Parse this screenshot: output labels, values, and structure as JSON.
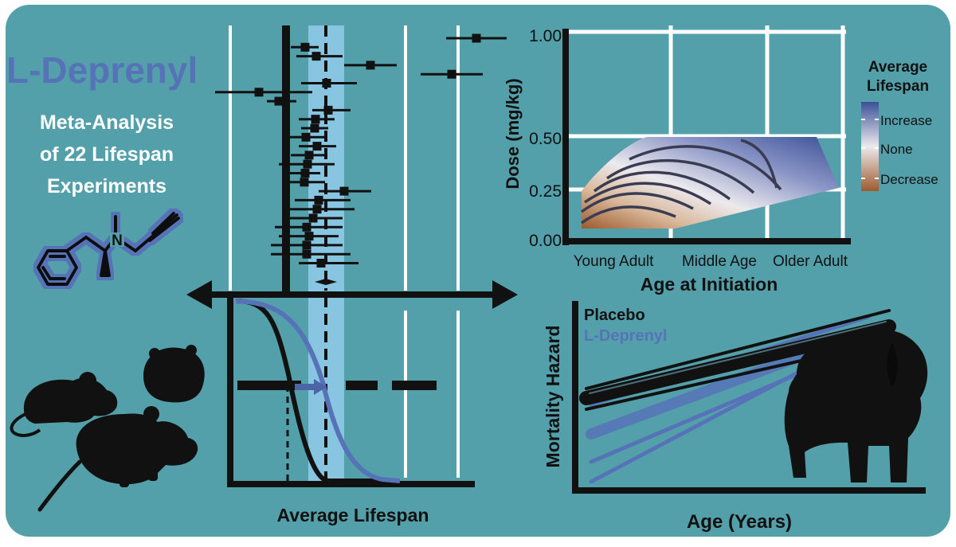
{
  "title": "L-Deprenyl",
  "subtitle": [
    "Meta-Analysis",
    "of 22 Lifespan",
    "Experiments"
  ],
  "colors": {
    "background": "#54a0aa",
    "deprenyl": "#5773b8",
    "band": "#8ec9e6",
    "placebo": "#111111",
    "increase": "#3a5096",
    "none": "#e9e9ec",
    "decrease": "#9d5a2c"
  },
  "forest_plot": {
    "xlabel": "Average Lifespan",
    "estimates": [
      {
        "est": 598,
        "lo": 560,
        "hi": 636
      },
      {
        "est": 383,
        "lo": 365,
        "hi": 400
      },
      {
        "est": 397,
        "lo": 372,
        "hi": 430
      },
      {
        "est": 465,
        "lo": 432,
        "hi": 498
      },
      {
        "est": 567,
        "lo": 528,
        "hi": 606
      },
      {
        "est": 410,
        "lo": 378,
        "hi": 448
      },
      {
        "est": 325,
        "lo": 270,
        "hi": 392
      },
      {
        "est": 350,
        "lo": 335,
        "hi": 372
      },
      {
        "est": 412,
        "lo": 392,
        "hi": 440
      },
      {
        "est": 396,
        "lo": 375,
        "hi": 420
      },
      {
        "est": 395,
        "lo": 378,
        "hi": 412
      },
      {
        "est": 384,
        "lo": 364,
        "hi": 408
      },
      {
        "est": 398,
        "lo": 375,
        "hi": 422
      },
      {
        "est": 388,
        "lo": 365,
        "hi": 410
      },
      {
        "est": 386,
        "lo": 350,
        "hi": 420
      },
      {
        "est": 383,
        "lo": 362,
        "hi": 402
      },
      {
        "est": 382,
        "lo": 362,
        "hi": 408
      },
      {
        "est": 432,
        "lo": 400,
        "hi": 466
      },
      {
        "est": 400,
        "lo": 370,
        "hi": 440
      },
      {
        "est": 398,
        "lo": 360,
        "hi": 445
      },
      {
        "est": 393,
        "lo": 355,
        "hi": 430
      },
      {
        "est": 385,
        "lo": 345,
        "hi": 430
      },
      {
        "est": 388,
        "lo": 350,
        "hi": 425
      },
      {
        "est": 385,
        "lo": 340,
        "hi": 430
      },
      {
        "est": 385,
        "lo": 340,
        "hi": 440
      },
      {
        "est": 403,
        "lo": 375,
        "hi": 450
      }
    ]
  },
  "chart_data": [
    {
      "type": "heatmap",
      "xlabel": "Age at Initiation",
      "ylabel": "Dose (mg/kg)",
      "x_ticks": [
        "Young Adult",
        "Middle Age",
        "Older Adult"
      ],
      "y_ticks": [
        "0.00",
        "0.25",
        "0.50",
        "1.00"
      ],
      "legend_title": [
        "Average",
        "Lifespan"
      ],
      "legend_labels": [
        "Increase",
        "None",
        "Decrease"
      ]
    },
    {
      "type": "line",
      "xlabel": "Age (Years)",
      "ylabel": "Mortality Hazard",
      "series": [
        {
          "name": "Placebo",
          "values": [
            0.55,
            0.87
          ]
        },
        {
          "name": "L-Deprenyl",
          "values": [
            0.2,
            0.78
          ]
        }
      ]
    }
  ]
}
